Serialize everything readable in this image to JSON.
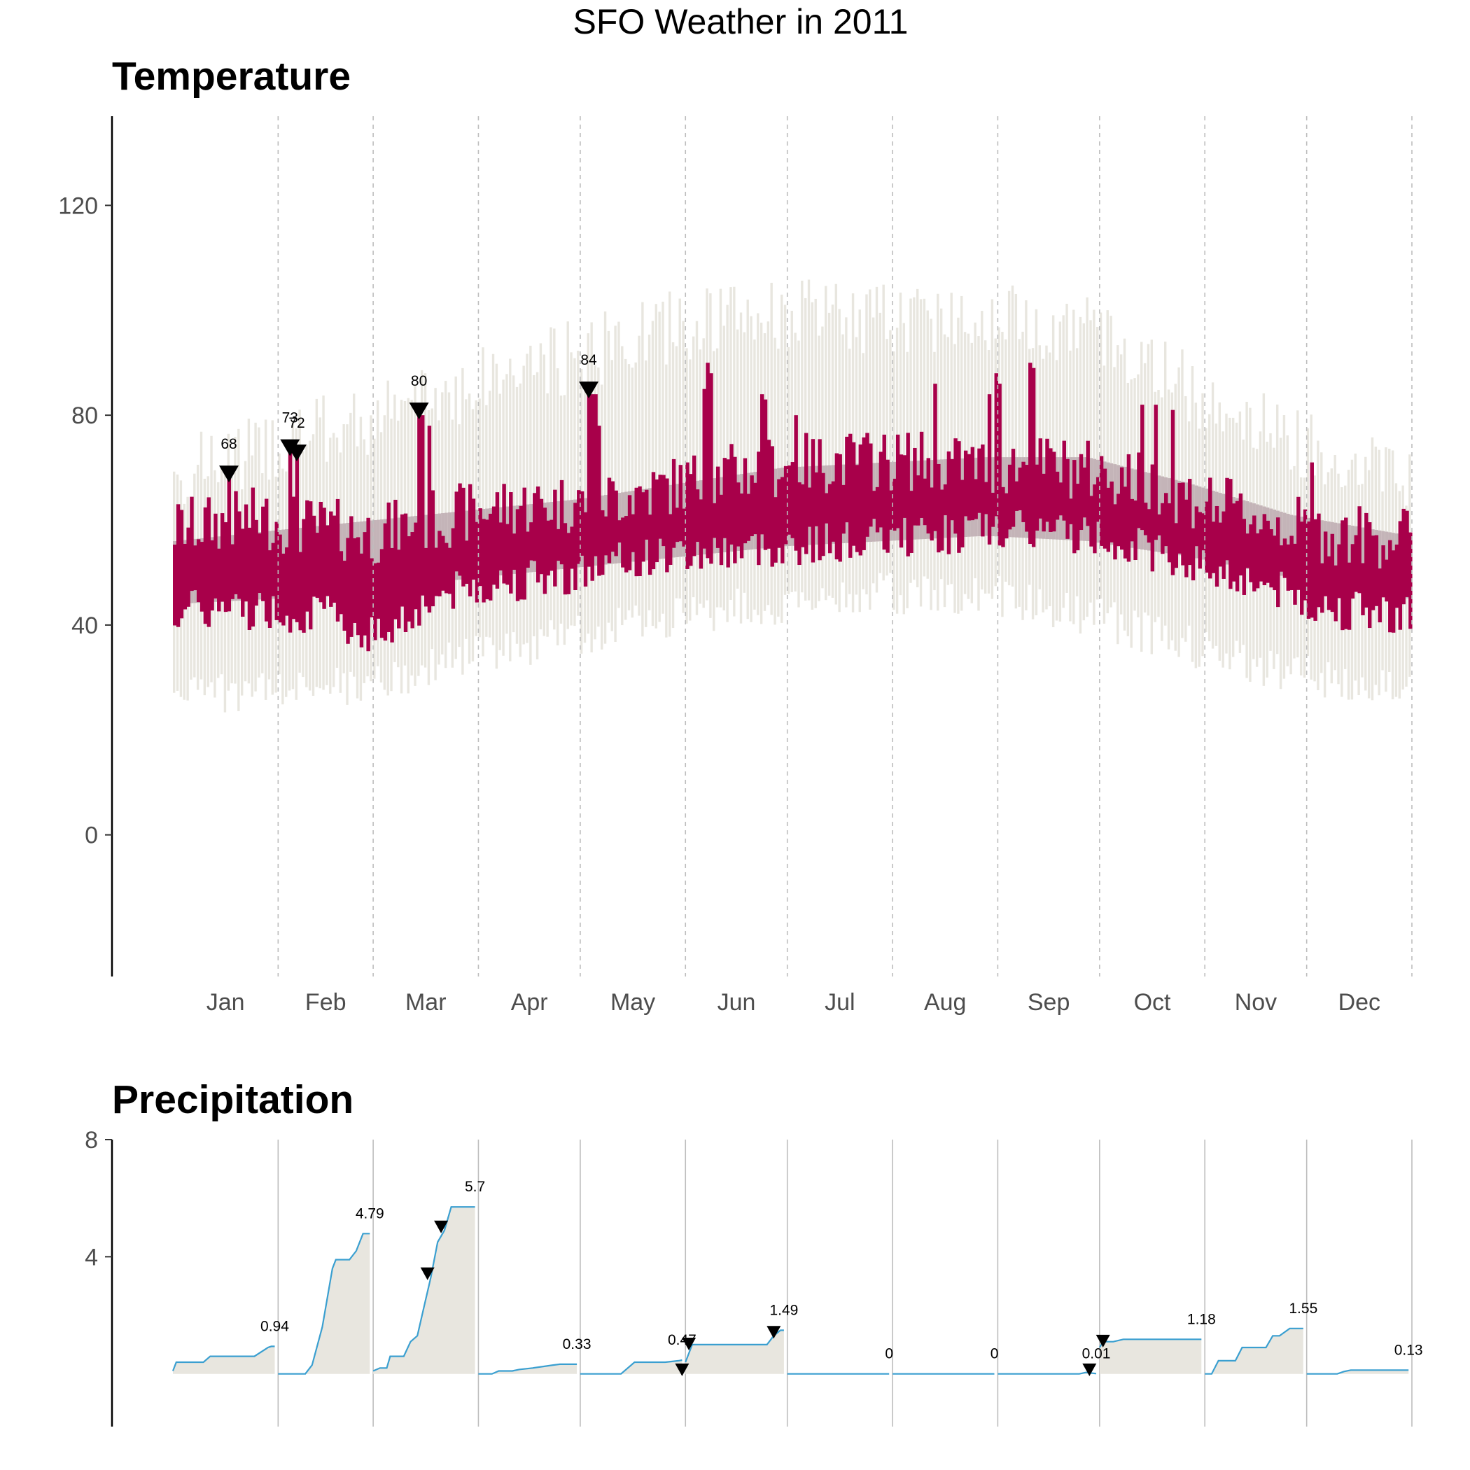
{
  "chart_data": {
    "title": "SFO Weather in 2011",
    "months": [
      "Jan",
      "Feb",
      "Mar",
      "Apr",
      "May",
      "Jun",
      "Jul",
      "Aug",
      "Sep",
      "Oct",
      "Nov",
      "Dec"
    ],
    "month_days": [
      31,
      28,
      31,
      30,
      31,
      30,
      31,
      31,
      30,
      31,
      30,
      31
    ],
    "colors": {
      "actual": "#a8004a",
      "normal": "#c4b4b8",
      "record": "#e8e6df",
      "precip_line": "#3a9fd0",
      "precip_fill": "#e8e6df",
      "gridline": "#bdbdbd",
      "axis": "#000000"
    },
    "panels": [
      {
        "type": "bar",
        "title": "Temperature",
        "ylim": [
          -27,
          137
        ],
        "yticks": [
          0,
          40,
          80,
          120
        ],
        "daily": {
          "actual_low_base": [
            [
              1,
              43
            ],
            [
              25,
              43
            ],
            [
              45,
              42
            ],
            [
              60,
              38
            ],
            [
              80,
              46
            ],
            [
              95,
              48
            ],
            [
              120,
              50
            ],
            [
              140,
              53
            ],
            [
              160,
              54
            ],
            [
              180,
              55
            ],
            [
              200,
              56
            ],
            [
              220,
              57
            ],
            [
              240,
              58
            ],
            [
              260,
              58
            ],
            [
              280,
              56
            ],
            [
              300,
              52
            ],
            [
              320,
              48
            ],
            [
              340,
              43
            ],
            [
              365,
              42
            ]
          ],
          "actual_high_base": [
            [
              1,
              56
            ],
            [
              25,
              58
            ],
            [
              45,
              56
            ],
            [
              60,
              55
            ],
            [
              80,
              58
            ],
            [
              95,
              60
            ],
            [
              120,
              61
            ],
            [
              140,
              63
            ],
            [
              160,
              66
            ],
            [
              180,
              68
            ],
            [
              200,
              69
            ],
            [
              220,
              69
            ],
            [
              240,
              68
            ],
            [
              260,
              68
            ],
            [
              280,
              66
            ],
            [
              300,
              62
            ],
            [
              320,
              58
            ],
            [
              340,
              55
            ],
            [
              365,
              54
            ]
          ],
          "normal_low": [
            [
              1,
              44
            ],
            [
              30,
              45
            ],
            [
              60,
              47
            ],
            [
              90,
              49
            ],
            [
              120,
              51
            ],
            [
              150,
              53
            ],
            [
              180,
              55
            ],
            [
              210,
              56
            ],
            [
              240,
              57
            ],
            [
              270,
              56
            ],
            [
              300,
              53
            ],
            [
              330,
              49
            ],
            [
              365,
              45
            ]
          ],
          "normal_high": [
            [
              1,
              56
            ],
            [
              30,
              58
            ],
            [
              60,
              60
            ],
            [
              90,
              62
            ],
            [
              120,
              64
            ],
            [
              150,
              67
            ],
            [
              180,
              70
            ],
            [
              210,
              71
            ],
            [
              240,
              72
            ],
            [
              270,
              72
            ],
            [
              300,
              67
            ],
            [
              330,
              61
            ],
            [
              365,
              57
            ]
          ],
          "record_low": [
            [
              1,
              31
            ],
            [
              30,
              31
            ],
            [
              60,
              33
            ],
            [
              90,
              38
            ],
            [
              120,
              42
            ],
            [
              150,
              46
            ],
            [
              180,
              48
            ],
            [
              210,
              50
            ],
            [
              240,
              50
            ],
            [
              270,
              46
            ],
            [
              300,
              40
            ],
            [
              330,
              35
            ],
            [
              365,
              32
            ]
          ],
          "record_high": [
            [
              1,
              67
            ],
            [
              30,
              73
            ],
            [
              60,
              78
            ],
            [
              90,
              85
            ],
            [
              120,
              90
            ],
            [
              150,
              96
            ],
            [
              180,
              98
            ],
            [
              210,
              97
            ],
            [
              240,
              98
            ],
            [
              270,
              95
            ],
            [
              300,
              84
            ],
            [
              330,
              74
            ],
            [
              365,
              67
            ]
          ]
        },
        "annotations": [
          {
            "day": 17,
            "value": 68,
            "label": "68"
          },
          {
            "day": 35,
            "value": 73,
            "label": "73"
          },
          {
            "day": 37,
            "value": 72,
            "label": "72"
          },
          {
            "day": 73,
            "value": 80,
            "label": "80"
          },
          {
            "day": 123,
            "value": 84,
            "label": "84"
          }
        ],
        "spikes": [
          {
            "day": 74,
            "value": 80
          },
          {
            "day": 76,
            "value": 78
          },
          {
            "day": 124,
            "value": 84
          },
          {
            "day": 125,
            "value": 84
          },
          {
            "day": 126,
            "value": 78
          },
          {
            "day": 157,
            "value": 85
          },
          {
            "day": 158,
            "value": 90
          },
          {
            "day": 159,
            "value": 88
          },
          {
            "day": 174,
            "value": 84
          },
          {
            "day": 175,
            "value": 83
          },
          {
            "day": 184,
            "value": 80
          },
          {
            "day": 225,
            "value": 86
          },
          {
            "day": 241,
            "value": 84
          },
          {
            "day": 243,
            "value": 88
          },
          {
            "day": 244,
            "value": 86
          },
          {
            "day": 253,
            "value": 90
          },
          {
            "day": 254,
            "value": 89
          },
          {
            "day": 286,
            "value": 82
          },
          {
            "day": 290,
            "value": 82
          },
          {
            "day": 295,
            "value": 81
          },
          {
            "day": 336,
            "value": 71
          }
        ]
      },
      {
        "type": "area",
        "title": "Precipitation",
        "ylim": [
          -1.8,
          8
        ],
        "yticks": [
          4,
          8
        ],
        "monthly_cumulative": [
          {
            "month": "Jan",
            "points": [
              [
                1,
                0.1
              ],
              [
                2,
                0.4
              ],
              [
                10,
                0.4
              ],
              [
                12,
                0.6
              ],
              [
                25,
                0.6
              ],
              [
                29,
                0.9
              ],
              [
                30,
                0.94
              ],
              [
                31,
                0.94
              ]
            ],
            "total": 0.94,
            "label": "0.94"
          },
          {
            "month": "Feb",
            "points": [
              [
                1,
                0
              ],
              [
                9,
                0
              ],
              [
                11,
                0.3
              ],
              [
                14,
                1.6
              ],
              [
                17,
                3.6
              ],
              [
                18,
                3.9
              ],
              [
                22,
                3.9
              ],
              [
                24,
                4.2
              ],
              [
                26,
                4.79
              ],
              [
                28,
                4.79
              ]
            ],
            "total": 4.79,
            "label": "4.79"
          },
          {
            "month": "Mar",
            "points": [
              [
                1,
                0.1
              ],
              [
                3,
                0.2
              ],
              [
                5,
                0.2
              ],
              [
                6,
                0.6
              ],
              [
                10,
                0.6
              ],
              [
                12,
                1.1
              ],
              [
                14,
                1.3
              ],
              [
                16,
                2.3
              ],
              [
                18,
                3.3
              ],
              [
                20,
                4.5
              ],
              [
                22,
                4.9
              ],
              [
                24,
                5.7
              ],
              [
                31,
                5.7
              ]
            ],
            "total": 5.7,
            "label": "5.7"
          },
          {
            "month": "Apr",
            "points": [
              [
                1,
                0
              ],
              [
                5,
                0
              ],
              [
                7,
                0.1
              ],
              [
                11,
                0.1
              ],
              [
                13,
                0.15
              ],
              [
                17,
                0.2
              ],
              [
                23,
                0.3
              ],
              [
                25,
                0.33
              ],
              [
                30,
                0.33
              ]
            ],
            "total": 0.33,
            "label": "0.33"
          },
          {
            "month": "May",
            "points": [
              [
                1,
                0
              ],
              [
                13,
                0
              ],
              [
                17,
                0.4
              ],
              [
                26,
                0.4
              ],
              [
                30,
                0.45
              ],
              [
                31,
                0.47
              ]
            ],
            "total": 0.47,
            "label": "0.47"
          },
          {
            "month": "Jun",
            "points": [
              [
                1,
                0.4
              ],
              [
                3,
                1.0
              ],
              [
                25,
                1.0
              ],
              [
                27,
                1.3
              ],
              [
                29,
                1.49
              ],
              [
                30,
                1.49
              ]
            ],
            "total": 1.49,
            "label": "1.49"
          },
          {
            "month": "Jul",
            "points": [
              [
                1,
                0
              ],
              [
                31,
                0
              ]
            ],
            "total": 0,
            "label": "0"
          },
          {
            "month": "Aug",
            "points": [
              [
                1,
                0
              ],
              [
                31,
                0
              ]
            ],
            "total": 0,
            "label": "0"
          },
          {
            "month": "Sep",
            "points": [
              [
                1,
                0
              ],
              [
                25,
                0
              ],
              [
                27,
                0.05
              ],
              [
                30,
                0.01
              ]
            ],
            "total": 0.01,
            "label": "0.01"
          },
          {
            "month": "Oct",
            "points": [
              [
                1,
                0.9
              ],
              [
                2,
                1.1
              ],
              [
                5,
                1.1
              ],
              [
                8,
                1.18
              ],
              [
                31,
                1.18
              ]
            ],
            "total": 1.18,
            "label": "1.18"
          },
          {
            "month": "Nov",
            "points": [
              [
                1,
                0
              ],
              [
                3,
                0
              ],
              [
                5,
                0.45
              ],
              [
                10,
                0.45
              ],
              [
                12,
                0.9
              ],
              [
                19,
                0.9
              ],
              [
                21,
                1.3
              ],
              [
                23,
                1.3
              ],
              [
                26,
                1.55
              ],
              [
                30,
                1.55
              ]
            ],
            "total": 1.55,
            "label": "1.55"
          },
          {
            "month": "Dec",
            "points": [
              [
                1,
                0
              ],
              [
                10,
                0
              ],
              [
                12,
                0.08
              ],
              [
                14,
                0.13
              ],
              [
                31,
                0.13
              ]
            ],
            "total": 0.13,
            "label": "0.13"
          }
        ],
        "markers": [
          {
            "month": "Mar",
            "day": 17,
            "value": 3.3
          },
          {
            "month": "Mar",
            "day": 21,
            "value": 4.9
          },
          {
            "month": "May",
            "day": 31,
            "value": 0.02
          },
          {
            "month": "Jun",
            "day": 2,
            "value": 0.9
          },
          {
            "month": "Jun",
            "day": 27,
            "value": 1.3
          },
          {
            "month": "Sep",
            "day": 28,
            "value": 0.02
          },
          {
            "month": "Oct",
            "day": 2,
            "value": 1.0
          }
        ]
      }
    ]
  }
}
